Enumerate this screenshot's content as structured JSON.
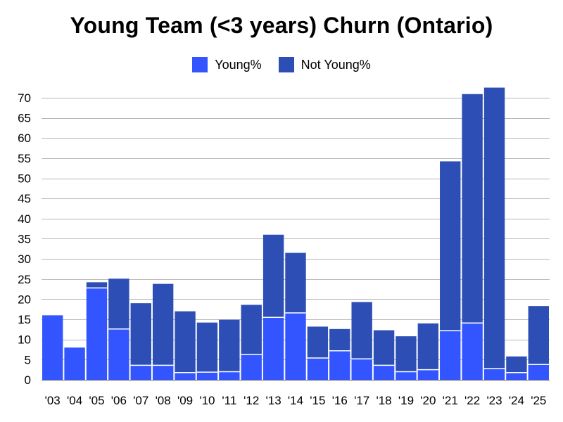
{
  "chart_data": {
    "type": "bar",
    "stacked": true,
    "title": "Young Team (<3 years) Churn (Ontario)",
    "xlabel": "",
    "ylabel": "",
    "legend_position": "top-center",
    "grid": true,
    "ylim": [
      0,
      72.5
    ],
    "yticks": [
      0,
      5,
      10,
      15,
      20,
      25,
      30,
      35,
      40,
      45,
      50,
      55,
      60,
      65,
      70
    ],
    "categories": [
      "'03",
      "'04",
      "'05",
      "'06",
      "'07",
      "'08",
      "'09",
      "'10",
      "'11",
      "'12",
      "'13",
      "'14",
      "'15",
      "'16",
      "'17",
      "'18",
      "'19",
      "'20",
      "'21",
      "'22",
      "'23",
      "'24",
      "'25"
    ],
    "series": [
      {
        "name": "Young%",
        "color": "#3355ff",
        "values": [
          16,
          8,
          22.8,
          12.6,
          3.6,
          3.6,
          1.8,
          1.9,
          2,
          6.3,
          15.5,
          16.6,
          5.4,
          7.2,
          5.2,
          3.6,
          2,
          2.5,
          12.2,
          14.1,
          2.8,
          1.8,
          3.8
        ]
      },
      {
        "name": "Not Young%",
        "color": "#2d4fb5",
        "values": [
          0,
          0,
          1.4,
          12.5,
          15.4,
          20.2,
          15.2,
          12.3,
          12.9,
          12.3,
          20.5,
          14.9,
          7.8,
          5.4,
          14.1,
          8.7,
          8.8,
          11.5,
          42,
          56.8,
          69.7,
          4,
          14.5
        ]
      }
    ]
  }
}
